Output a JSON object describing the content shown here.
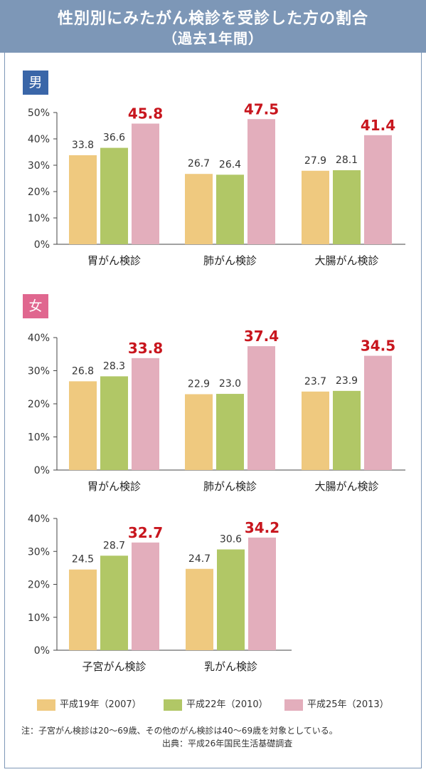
{
  "title": {
    "line1": "性別別にみたがん検診を受診した方の割合",
    "line2": "（過去1年間）"
  },
  "gender_labels": {
    "male": "男",
    "female": "女"
  },
  "colors": {
    "header": "#7d97b7",
    "male_badge": "#3a66a8",
    "female_badge": "#e0678f",
    "series": [
      "#efc97f",
      "#b1c766",
      "#e3aebc"
    ],
    "highlight_text": "#c8161e"
  },
  "legend": [
    {
      "label": "平成19年（2007）",
      "color": "#efc97f"
    },
    {
      "label": "平成22年（2010）",
      "color": "#b1c766"
    },
    {
      "label": "平成25年（2013）",
      "color": "#e3aebc"
    }
  ],
  "notes": {
    "note": "注：子宮がん検診は20～69歳、その他のがん検診は40～69歳を対象としている。",
    "source": "出典：平成26年国民生活基礎調査"
  },
  "chart_data": [
    {
      "type": "bar",
      "group": "男",
      "categories": [
        "胃がん検診",
        "肺がん検診",
        "大腸がん検診"
      ],
      "series": [
        {
          "name": "平成19年（2007）",
          "values": [
            33.8,
            26.7,
            27.9
          ]
        },
        {
          "name": "平成22年（2010）",
          "values": [
            36.6,
            26.4,
            28.1
          ]
        },
        {
          "name": "平成25年（2013）",
          "values": [
            45.8,
            47.5,
            41.4
          ]
        }
      ],
      "ylim": [
        0,
        50
      ],
      "yticks": [
        "0%",
        "10%",
        "20%",
        "30%",
        "40%",
        "50%"
      ]
    },
    {
      "type": "bar",
      "group": "女",
      "categories": [
        "胃がん検診",
        "肺がん検診",
        "大腸がん検診"
      ],
      "series": [
        {
          "name": "平成19年（2007）",
          "values": [
            26.8,
            22.9,
            23.7
          ]
        },
        {
          "name": "平成22年（2010）",
          "values": [
            28.3,
            23.0,
            23.9
          ]
        },
        {
          "name": "平成25年（2013）",
          "values": [
            33.8,
            37.4,
            34.5
          ]
        }
      ],
      "ylim": [
        0,
        40
      ],
      "yticks": [
        "0%",
        "10%",
        "20%",
        "30%",
        "40%"
      ]
    },
    {
      "type": "bar",
      "group": "女",
      "categories": [
        "子宮がん検診",
        "乳がん検診"
      ],
      "series": [
        {
          "name": "平成19年（2007）",
          "values": [
            24.5,
            24.7
          ]
        },
        {
          "name": "平成22年（2010）",
          "values": [
            28.7,
            30.6
          ]
        },
        {
          "name": "平成25年（2013）",
          "values": [
            32.7,
            34.2
          ]
        }
      ],
      "ylim": [
        0,
        40
      ],
      "yticks": [
        "0%",
        "10%",
        "20%",
        "30%",
        "40%"
      ]
    }
  ]
}
